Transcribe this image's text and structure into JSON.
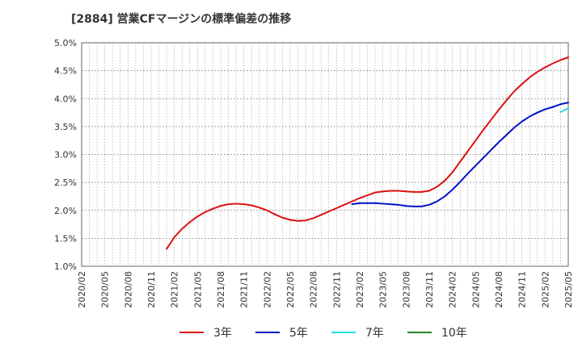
{
  "chart_data": {
    "type": "line",
    "title": "[2884]  営業CFマージンの標準偏差の推移",
    "xlabel": "",
    "ylabel": "",
    "ylim": [
      1.0,
      5.0
    ],
    "yticks": [
      "1.0%",
      "1.5%",
      "2.0%",
      "2.5%",
      "3.0%",
      "3.5%",
      "4.0%",
      "4.5%",
      "5.0%"
    ],
    "x_ticks": [
      "2020/02",
      "2020/05",
      "2020/08",
      "2020/11",
      "2021/02",
      "2021/05",
      "2021/08",
      "2021/11",
      "2022/02",
      "2022/05",
      "2022/08",
      "2022/11",
      "2023/02",
      "2023/05",
      "2023/08",
      "2023/11",
      "2024/02",
      "2024/05",
      "2024/08",
      "2024/11",
      "2025/02",
      "2025/05"
    ],
    "x_start": "2020/02",
    "grid": true,
    "legend_position": "bottom",
    "series": [
      {
        "name": "3年",
        "color": "#dd1111",
        "points": [
          [
            "2021/01",
            1.31
          ],
          [
            "2021/02",
            1.52
          ],
          [
            "2021/03",
            1.67
          ],
          [
            "2021/04",
            1.79
          ],
          [
            "2021/05",
            1.89
          ],
          [
            "2021/06",
            1.97
          ],
          [
            "2021/07",
            2.03
          ],
          [
            "2021/08",
            2.08
          ],
          [
            "2021/09",
            2.11
          ],
          [
            "2021/10",
            2.12
          ],
          [
            "2021/11",
            2.11
          ],
          [
            "2021/12",
            2.09
          ],
          [
            "2022/01",
            2.05
          ],
          [
            "2022/02",
            2.0
          ],
          [
            "2022/03",
            1.93
          ],
          [
            "2022/04",
            1.87
          ],
          [
            "2022/05",
            1.83
          ],
          [
            "2022/06",
            1.81
          ],
          [
            "2022/07",
            1.82
          ],
          [
            "2022/08",
            1.86
          ],
          [
            "2022/09",
            1.92
          ],
          [
            "2022/10",
            1.98
          ],
          [
            "2022/11",
            2.04
          ],
          [
            "2022/12",
            2.1
          ],
          [
            "2023/01",
            2.16
          ],
          [
            "2023/02",
            2.22
          ],
          [
            "2023/03",
            2.27
          ],
          [
            "2023/04",
            2.32
          ],
          [
            "2023/05",
            2.34
          ],
          [
            "2023/06",
            2.35
          ],
          [
            "2023/07",
            2.35
          ],
          [
            "2023/08",
            2.34
          ],
          [
            "2023/09",
            2.33
          ],
          [
            "2023/10",
            2.33
          ],
          [
            "2023/11",
            2.35
          ],
          [
            "2023/12",
            2.42
          ],
          [
            "2024/01",
            2.53
          ],
          [
            "2024/02",
            2.68
          ],
          [
            "2024/03",
            2.87
          ],
          [
            "2024/04",
            3.06
          ],
          [
            "2024/05",
            3.25
          ],
          [
            "2024/06",
            3.44
          ],
          [
            "2024/07",
            3.62
          ],
          [
            "2024/08",
            3.8
          ],
          [
            "2024/09",
            3.97
          ],
          [
            "2024/10",
            4.13
          ],
          [
            "2024/11",
            4.26
          ],
          [
            "2024/12",
            4.38
          ],
          [
            "2025/01",
            4.48
          ],
          [
            "2025/02",
            4.56
          ],
          [
            "2025/03",
            4.63
          ],
          [
            "2025/04",
            4.69
          ],
          [
            "2025/05",
            4.74
          ]
        ]
      },
      {
        "name": "5年",
        "color": "#0011cc",
        "points": [
          [
            "2023/01",
            2.11
          ],
          [
            "2023/02",
            2.13
          ],
          [
            "2023/03",
            2.13
          ],
          [
            "2023/04",
            2.13
          ],
          [
            "2023/05",
            2.12
          ],
          [
            "2023/06",
            2.11
          ],
          [
            "2023/07",
            2.1
          ],
          [
            "2023/08",
            2.08
          ],
          [
            "2023/09",
            2.07
          ],
          [
            "2023/10",
            2.07
          ],
          [
            "2023/11",
            2.1
          ],
          [
            "2023/12",
            2.16
          ],
          [
            "2024/01",
            2.25
          ],
          [
            "2024/02",
            2.37
          ],
          [
            "2024/03",
            2.51
          ],
          [
            "2024/04",
            2.66
          ],
          [
            "2024/05",
            2.8
          ],
          [
            "2024/06",
            2.94
          ],
          [
            "2024/07",
            3.08
          ],
          [
            "2024/08",
            3.22
          ],
          [
            "2024/09",
            3.35
          ],
          [
            "2024/10",
            3.48
          ],
          [
            "2024/11",
            3.59
          ],
          [
            "2024/12",
            3.68
          ],
          [
            "2025/01",
            3.75
          ],
          [
            "2025/02",
            3.81
          ],
          [
            "2025/03",
            3.85
          ],
          [
            "2025/04",
            3.9
          ],
          [
            "2025/05",
            3.93
          ]
        ]
      },
      {
        "name": "7年",
        "color": "#22dddd",
        "points": [
          [
            "2025/04",
            3.76
          ],
          [
            "2025/05",
            3.83
          ]
        ]
      },
      {
        "name": "10年",
        "color": "#228822",
        "points": []
      }
    ]
  }
}
